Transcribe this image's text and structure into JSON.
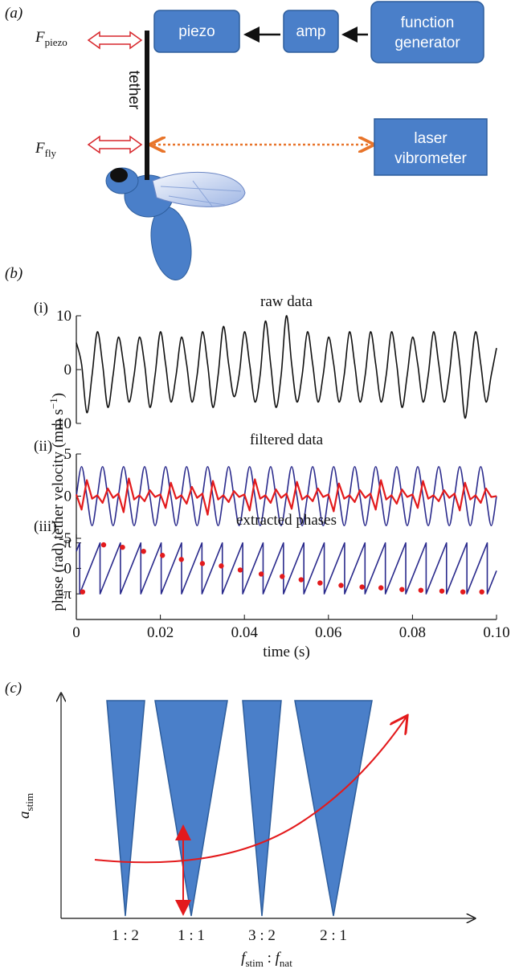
{
  "panel_a": {
    "label": "(a)",
    "f_piezo": {
      "symbol": "F",
      "subscript": "piezo"
    },
    "f_fly": {
      "symbol": "F",
      "subscript": "fly"
    },
    "tether": "tether",
    "piezo": "piezo",
    "amp": "amp",
    "function_generator": [
      "function",
      "generator"
    ],
    "laser_vibrometer": [
      "laser",
      "vibrometer"
    ]
  },
  "panel_b": {
    "label": "(b)",
    "ylabel_velocity": {
      "text": "tether velocity (mm s",
      "superscript": "−1",
      "suffix": ")"
    }
  },
  "panel_c": {
    "label": "(c)",
    "ylabel": {
      "symbol": "a",
      "subscript": "stim"
    },
    "ratios": [
      "1 : 2",
      "1 : 1",
      "3 : 2",
      "2 : 1"
    ],
    "xlabel": {
      "symbol1": "f",
      "sub1": "stim",
      "sep": " : ",
      "symbol2": "f",
      "sub2": "nat"
    }
  },
  "chart_data": [
    {
      "type": "line",
      "panel": "(i)",
      "title": "raw data",
      "xlim": [
        0,
        0.1
      ],
      "ylim": [
        -10,
        10
      ],
      "yticks": [
        -10,
        0,
        10
      ],
      "x": [
        0,
        0.00125,
        0.0025,
        0.00375,
        0.005,
        0.00625,
        0.0075,
        0.00875,
        0.01,
        0.01125,
        0.0125,
        0.01375,
        0.015,
        0.01625,
        0.0175,
        0.01875,
        0.02,
        0.02125,
        0.0225,
        0.02375,
        0.025,
        0.02625,
        0.0275,
        0.02875,
        0.03,
        0.03125,
        0.0325,
        0.03375,
        0.035,
        0.03625,
        0.0375,
        0.03875,
        0.04,
        0.04125,
        0.0425,
        0.04375,
        0.045,
        0.04625,
        0.0475,
        0.04875,
        0.05,
        0.05125,
        0.0525,
        0.05375,
        0.055,
        0.05625,
        0.0575,
        0.05875,
        0.06,
        0.06125,
        0.0625,
        0.06375,
        0.065,
        0.06625,
        0.0675,
        0.06875,
        0.07,
        0.07125,
        0.0725,
        0.07375,
        0.075,
        0.07625,
        0.0775,
        0.07875,
        0.08,
        0.08125,
        0.0825,
        0.08375,
        0.085,
        0.08625,
        0.0875,
        0.08875,
        0.09,
        0.09125,
        0.0925,
        0.09375,
        0.095,
        0.09625,
        0.0975,
        0.09875,
        0.1
      ],
      "series": [
        {
          "color": "#111111",
          "values": [
            5,
            1,
            -8,
            -1,
            7,
            1,
            -7,
            -1,
            6,
            1,
            -6,
            -1,
            6,
            1,
            -7,
            -1,
            7,
            1,
            -6,
            -1,
            6,
            1,
            -6,
            -1,
            7,
            1,
            -7,
            -1,
            8,
            1,
            -5,
            -1,
            7,
            1,
            -6,
            -1,
            9,
            1,
            -7,
            -1,
            10,
            1,
            -6,
            -1,
            7,
            1,
            -6,
            -1,
            6,
            1,
            -6,
            -1,
            7,
            1,
            -6,
            -1,
            7,
            1,
            -6,
            -1,
            7,
            1,
            -7,
            -1,
            6,
            1,
            -6,
            -1,
            7,
            1,
            -6,
            -1,
            7,
            1,
            -9,
            -1,
            7,
            1,
            -6,
            -1,
            4
          ]
        }
      ]
    },
    {
      "type": "line",
      "panel": "(ii)",
      "title": "filtered data",
      "xlim": [
        0,
        0.1
      ],
      "ylim": [
        -5,
        5
      ],
      "yticks": [
        -5,
        0,
        5
      ],
      "x": [
        0,
        0.00125,
        0.0025,
        0.00375,
        0.005,
        0.00625,
        0.0075,
        0.00875,
        0.01,
        0.01125,
        0.0125,
        0.01375,
        0.015,
        0.01625,
        0.0175,
        0.01875,
        0.02,
        0.02125,
        0.0225,
        0.02375,
        0.025,
        0.02625,
        0.0275,
        0.02875,
        0.03,
        0.03125,
        0.0325,
        0.03375,
        0.035,
        0.03625,
        0.0375,
        0.03875,
        0.04,
        0.04125,
        0.0425,
        0.04375,
        0.045,
        0.04625,
        0.0475,
        0.04875,
        0.05,
        0.05125,
        0.0525,
        0.05375,
        0.055,
        0.05625,
        0.0575,
        0.05875,
        0.06,
        0.06125,
        0.0625,
        0.06375,
        0.065,
        0.06625,
        0.0675,
        0.06875,
        0.07,
        0.07125,
        0.0725,
        0.07375,
        0.075,
        0.07625,
        0.0775,
        0.07875,
        0.08,
        0.08125,
        0.0825,
        0.08375,
        0.085,
        0.08625,
        0.0875,
        0.08875,
        0.09,
        0.09125,
        0.0925,
        0.09375,
        0.095,
        0.09625,
        0.0975,
        0.09875,
        0.1
      ],
      "series": [
        {
          "color": "#2a2a8c",
          "values": [
            0,
            3.5,
            0,
            -3.5,
            0,
            3.5,
            0,
            -3.5,
            0,
            3.5,
            0,
            -3.5,
            0,
            3.5,
            0,
            -3.5,
            0,
            3.5,
            0,
            -3.5,
            0,
            3.5,
            0,
            -3.5,
            0,
            3.5,
            0,
            -3.5,
            0,
            3.5,
            0,
            -3.5,
            0,
            3.5,
            0,
            -3.5,
            0,
            3.5,
            0,
            -3.5,
            0,
            3.5,
            0,
            -3.5,
            0,
            3.5,
            0,
            -3.5,
            0,
            3.5,
            0,
            -3.5,
            0,
            3.5,
            0,
            -3.5,
            0,
            3.5,
            0,
            -3.5,
            0,
            3.5,
            0,
            -3.5,
            0,
            3.5,
            0,
            -3.5,
            0,
            3.5,
            0,
            -3.5,
            0,
            3.5,
            0,
            -3.5,
            0,
            3.5,
            0,
            -3.5,
            0
          ]
        },
        {
          "color": "#e31a1c",
          "values": [
            0.2,
            -1.6,
            1.9,
            -0.3,
            0.1,
            -0.8,
            0.9,
            -0.2,
            0.3,
            -1.9,
            2.1,
            -0.4,
            0.1,
            -0.6,
            0.7,
            -0.1,
            0.2,
            -1.4,
            1.6,
            -0.3,
            0.1,
            -0.9,
            1.1,
            -0.2,
            0.3,
            -2.2,
            1.8,
            -0.4,
            0.1,
            -0.7,
            0.6,
            -0.1,
            0.2,
            -1.7,
            2.0,
            -0.3,
            0.1,
            -0.8,
            0.8,
            -0.2,
            0.3,
            -1.5,
            1.7,
            -0.4,
            0.1,
            -0.6,
            0.9,
            -0.1,
            0.2,
            -1.8,
            1.5,
            -0.3,
            0.1,
            -0.7,
            0.7,
            -0.2,
            0.3,
            -1.6,
            1.9,
            -0.4,
            0.1,
            -0.9,
            0.8,
            -0.1,
            0.2,
            -1.4,
            1.8,
            -0.3,
            0.1,
            -0.6,
            0.7,
            -0.2,
            0.3,
            -1.7,
            1.6,
            -0.4,
            0.1,
            -0.8,
            0.9,
            -0.1,
            0
          ]
        }
      ]
    },
    {
      "type": "line",
      "panel": "(iii)",
      "title": "extracted phases",
      "ylabel": "phase (rad)",
      "xlabel": "time (s)",
      "xlim": [
        0,
        0.1
      ],
      "ylim": [
        -6.3,
        4.2
      ],
      "yticks": [
        {
          "value": -3.1416,
          "label": "–π"
        },
        0,
        {
          "value": 3.1416,
          "label": "π"
        }
      ],
      "xticks": [
        0,
        0.02,
        0.04,
        0.06,
        0.08,
        {
          "value": 0.1,
          "label": "0.10"
        }
      ],
      "series": [
        {
          "color": "#2a2a8c",
          "x": [
            0,
            0.0008,
            0.0008,
            0.00565,
            0.00565,
            0.0105,
            0.0105,
            0.01535,
            0.01535,
            0.0202,
            0.0202,
            0.02505,
            0.02505,
            0.0299,
            0.0299,
            0.03475,
            0.03475,
            0.0396,
            0.0396,
            0.04445,
            0.04445,
            0.0493,
            0.0493,
            0.05415,
            0.05415,
            0.059,
            0.059,
            0.06385,
            0.06385,
            0.0687,
            0.0687,
            0.07355,
            0.07355,
            0.0784,
            0.0784,
            0.08325,
            0.08325,
            0.0881,
            0.0881,
            0.09295,
            0.09295,
            0.0978,
            0.0978,
            0.1
          ],
          "values": [
            2.1,
            3.14,
            -3.14,
            3.14,
            -3.14,
            3.14,
            -3.14,
            3.14,
            -3.14,
            3.14,
            -3.14,
            3.14,
            -3.14,
            3.14,
            -3.14,
            3.14,
            -3.14,
            3.14,
            -3.14,
            3.14,
            -3.14,
            3.14,
            -3.14,
            3.14,
            -3.14,
            3.14,
            -3.14,
            3.14,
            -3.14,
            3.14,
            -3.14,
            3.14,
            -3.14,
            3.14,
            -3.14,
            3.14,
            -3.14,
            3.14,
            -3.14,
            3.14,
            -3.14,
            3.14,
            -3.14,
            -0.29
          ]
        },
        {
          "type": "scatter",
          "color": "#e31a1c",
          "x": [
            0.0015,
            0.0065,
            0.011,
            0.016,
            0.0205,
            0.025,
            0.03,
            0.0345,
            0.039,
            0.044,
            0.049,
            0.0535,
            0.058,
            0.063,
            0.068,
            0.0725,
            0.0775,
            0.082,
            0.087,
            0.092,
            0.0965
          ],
          "values": [
            -2.9,
            2.9,
            2.6,
            2.1,
            1.6,
            1.1,
            0.6,
            0.3,
            -0.2,
            -0.7,
            -1.0,
            -1.4,
            -1.8,
            -2.1,
            -2.3,
            -2.4,
            -2.6,
            -2.7,
            -2.8,
            -2.9,
            -2.9
          ]
        }
      ]
    }
  ]
}
